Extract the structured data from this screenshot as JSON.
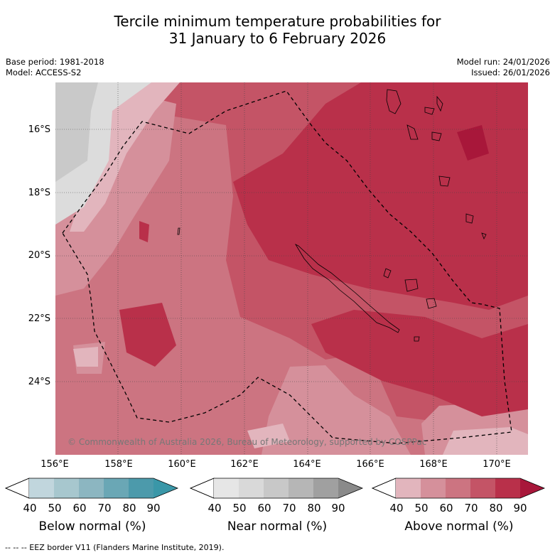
{
  "title": {
    "line1": "Tercile minimum temperature probabilities for",
    "line2": "31 January to 6 February 2026"
  },
  "meta_left": {
    "base_period": "Base period: 1981-2018",
    "model": "Model: ACCESS-S2"
  },
  "meta_right": {
    "model_run": "Model run: 24/01/2026",
    "issued": "Issued: 26/01/2026"
  },
  "latitude_labels": [
    "16°S",
    "18°S",
    "20°S",
    "22°S",
    "24°S"
  ],
  "longitude_labels": [
    "156°E",
    "158°E",
    "160°E",
    "162°E",
    "164°E",
    "166°E",
    "168°E",
    "170°E"
  ],
  "map": {
    "extent": {
      "lon_min": 155.96,
      "lon_max": 171.03,
      "lat_min": -25.9,
      "lat_max": -14.7
    },
    "copyright": "© Commonwealth of Australia 2026, Bureau of Meteorology, supported by COSPPac"
  },
  "legends": [
    {
      "name": "below",
      "title": "Below normal (%)",
      "ticks": [
        "40",
        "50",
        "60",
        "70",
        "80",
        "90"
      ],
      "colors": [
        "#c1d6dd",
        "#a7c7ce",
        "#8cb6c1",
        "#6aa7b5",
        "#4c9aab",
        "#3a97a8"
      ]
    },
    {
      "name": "near",
      "title": "Near normal (%)",
      "ticks": [
        "40",
        "50",
        "60",
        "70",
        "80",
        "90"
      ],
      "colors": [
        "#e6e6e6",
        "#d9d9d9",
        "#c8c8c8",
        "#b6b6b6",
        "#a0a0a0",
        "#8a8a8a"
      ]
    },
    {
      "name": "above",
      "title": "Above normal (%)",
      "ticks": [
        "40",
        "50",
        "60",
        "70",
        "80",
        "90"
      ],
      "colors": [
        "#e2b5bd",
        "#d5909b",
        "#cc7481",
        "#c45466",
        "#b9304a",
        "#a8173a"
      ]
    }
  ],
  "footer": "--  --  -- EEZ border V11 (Flanders Marine Institute, 2019)."
}
